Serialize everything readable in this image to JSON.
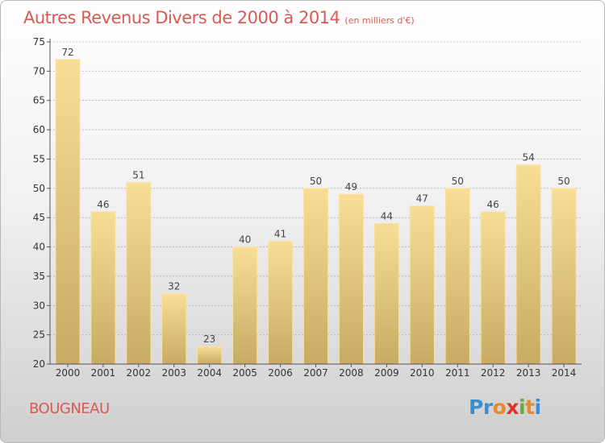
{
  "header": {
    "title": "Autres Revenus Divers de 2000 à 2014",
    "unit": "(en milliers d'€)"
  },
  "footer": {
    "place": "BOUGNEAU",
    "logo": {
      "text": "Proxiti",
      "letters": [
        "P",
        "r",
        "o",
        "x",
        "i",
        "t",
        "i"
      ],
      "colors": [
        "#3a8fd0",
        "#3a8fd0",
        "#e58a2e",
        "#d9352e",
        "#6aab3a",
        "#e58a2e",
        "#3a8fd0"
      ]
    }
  },
  "colors": {
    "title": "#d95a52",
    "bar_top": "#f8de95",
    "bar_bottom": "#c7ab62",
    "grid": "#999999"
  },
  "chart_data": {
    "type": "bar",
    "title": "Autres Revenus Divers de 2000 à 2014",
    "subtitle": "(en milliers d'€)",
    "xlabel": "",
    "ylabel": "",
    "categories": [
      "2000",
      "2001",
      "2002",
      "2003",
      "2004",
      "2005",
      "2006",
      "2007",
      "2008",
      "2009",
      "2010",
      "2011",
      "2012",
      "2013",
      "2014"
    ],
    "values": [
      72,
      46,
      51,
      32,
      23,
      40,
      41,
      50,
      49,
      44,
      47,
      50,
      46,
      54,
      50
    ],
    "ylim": [
      20,
      75
    ],
    "yticks": [
      20,
      25,
      30,
      35,
      40,
      45,
      50,
      55,
      60,
      65,
      70,
      75
    ],
    "grid": true,
    "legend": "none"
  }
}
